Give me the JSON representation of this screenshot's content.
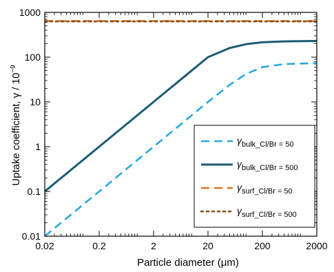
{
  "chart_data": {
    "type": "line",
    "xlabel": "Particle diameter (μm)",
    "ylabel_main": "Uptake coefficient, γ / 10",
    "ylabel_exp": "−9",
    "xscale": "log",
    "yscale": "log",
    "xlim": [
      0.02,
      2000
    ],
    "ylim": [
      0.01,
      1000
    ],
    "x_ticks": [
      0.02,
      0.2,
      2,
      20,
      200,
      2000
    ],
    "x_tick_labels": [
      "0.02",
      "0.2",
      "2",
      "20",
      "200",
      "2000"
    ],
    "y_ticks": [
      0.01,
      0.1,
      1,
      10,
      100,
      1000
    ],
    "y_tick_labels": [
      "0.01",
      "0.1",
      "1",
      "10",
      "100",
      "1000"
    ],
    "grid": false,
    "legend_position": "bottom-right",
    "series": [
      {
        "name": "γbulk_Cl/Br = 50",
        "symbol": "γ",
        "subscript": "bulk_Cl/Br = 50",
        "style": "dashed",
        "color": "#29a8e0",
        "x": [
          0.02,
          0.2,
          2,
          10,
          20,
          50,
          100,
          200,
          500,
          1000,
          2000
        ],
        "y": [
          0.01,
          0.1,
          1,
          5,
          10,
          24,
          42,
          60,
          70,
          72,
          73
        ]
      },
      {
        "name": "γbulk_Cl/Br = 500",
        "symbol": "γ",
        "subscript": "bulk_Cl/Br = 500",
        "style": "solid",
        "color": "#1b5a72",
        "x": [
          0.02,
          0.2,
          2,
          10,
          20,
          50,
          100,
          200,
          500,
          1000,
          2000
        ],
        "y": [
          0.1,
          1,
          10,
          50,
          100,
          160,
          195,
          215,
          225,
          228,
          230
        ]
      },
      {
        "name": "γsurf_Cl/Br = 50",
        "symbol": "γ",
        "subscript": "surf_Cl/Br = 50",
        "style": "dashed",
        "color": "#d9731c",
        "x": [
          0.02,
          2000
        ],
        "y": [
          640,
          640
        ]
      },
      {
        "name": "γsurf_Cl/Br = 500",
        "symbol": "γ",
        "subscript": "surf_Cl/Br = 500",
        "style": "dotted",
        "color": "#8b4a12",
        "x": [
          0.02,
          2000
        ],
        "y": [
          630,
          630
        ]
      }
    ]
  }
}
